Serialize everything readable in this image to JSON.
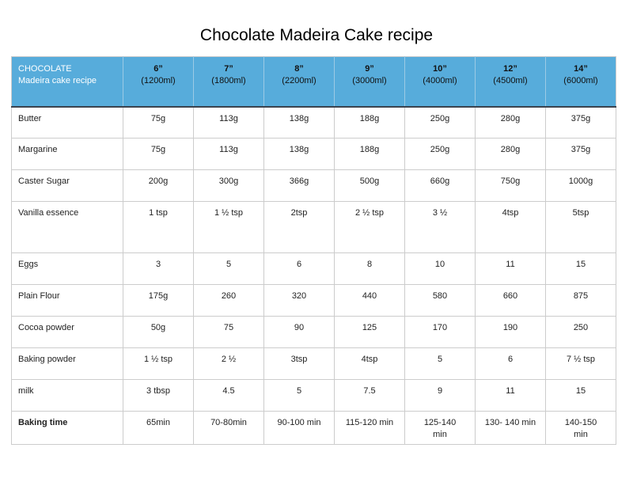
{
  "title": "Chocolate Madeira Cake recipe",
  "table": {
    "corner": {
      "line1": "CHOCOLATE",
      "line2": "Madeira cake recipe"
    },
    "columns": [
      {
        "size": "6”",
        "volume": "(1200ml)"
      },
      {
        "size": "7”",
        "volume": "(1800ml)"
      },
      {
        "size": "8”",
        "volume": "(2200ml)"
      },
      {
        "size": "9”",
        "volume": "(3000ml)"
      },
      {
        "size": "10”",
        "volume": "(4000ml)"
      },
      {
        "size": "12”",
        "volume": "(4500ml)"
      },
      {
        "size": "14”",
        "volume": "(6000ml)"
      }
    ],
    "rows": [
      {
        "label": "Butter",
        "values": [
          "75g",
          "113g",
          "138g",
          "188g",
          "250g",
          "280g",
          "375g"
        ]
      },
      {
        "label": "Margarine",
        "values": [
          "75g",
          "113g",
          "138g",
          "188g",
          "250g",
          "280g",
          "375g"
        ]
      },
      {
        "label": "Caster Sugar",
        "values": [
          "200g",
          "300g",
          "366g",
          "500g",
          "660g",
          "750g",
          "1000g"
        ]
      },
      {
        "label": "Vanilla essence",
        "values": [
          "1 tsp",
          "1 ½ tsp",
          "2tsp",
          "2 ½ tsp",
          "3 ½",
          "4tsp",
          "5tsp"
        ]
      },
      {
        "label": "Eggs",
        "values": [
          "3",
          "5",
          "6",
          "8",
          "10",
          "11",
          "15"
        ]
      },
      {
        "label": "Plain Flour",
        "values": [
          "175g",
          "260",
          "320",
          "440",
          "580",
          "660",
          "875"
        ]
      },
      {
        "label": "Cocoa powder",
        "values": [
          "50g",
          "75",
          "90",
          "125",
          "170",
          "190",
          "250"
        ]
      },
      {
        "label": "Baking powder",
        "values": [
          "1 ½ tsp",
          "2 ½",
          "3tsp",
          "4tsp",
          "5",
          "6",
          "7 ½ tsp"
        ]
      },
      {
        "label": "milk",
        "values": [
          "3 tbsp",
          "4.5",
          "5",
          "7.5",
          "9",
          "11",
          "15"
        ]
      },
      {
        "label": "Baking time",
        "values": [
          "65min",
          "70-80min",
          "90-100 min",
          "115-120 min",
          "125-140\nmin",
          "130- 140 min",
          "140-150\nmin"
        ]
      }
    ]
  },
  "colors": {
    "header_bg": "#57ACDB",
    "header_text_light": "#FFFFFF",
    "header_text_dark": "#111111",
    "header_divider": "#9CCAE5",
    "header_bottom_border": "#3A424E",
    "cell_border": "#CCCCCC",
    "body_text": "#1F1F1F",
    "background": "#FFFFFF"
  }
}
